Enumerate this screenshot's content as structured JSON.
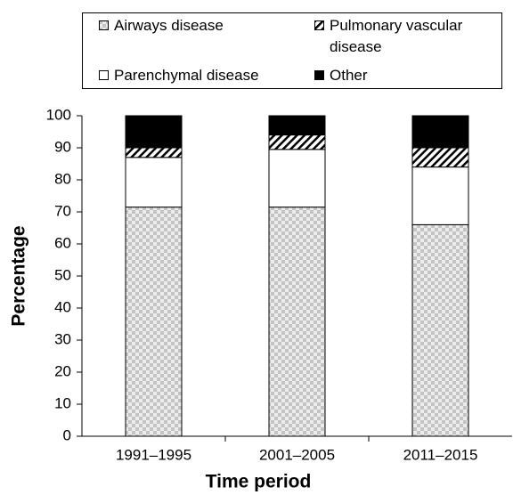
{
  "chart_data": {
    "type": "stacked_bar",
    "categories": [
      "1991–1995",
      "2001–2005",
      "2011–2015"
    ],
    "series": [
      {
        "name": "Airways disease",
        "color": "#c4c4c4",
        "pattern": "checker",
        "values": [
          71.5,
          71.5,
          66
        ]
      },
      {
        "name": "Parenchymal disease",
        "color": "#ffffff",
        "pattern": "solid",
        "values": [
          15.5,
          18,
          18
        ]
      },
      {
        "name": "Pulmonary vascular disease",
        "color": "#000000",
        "pattern": "hatch",
        "values": [
          3,
          4.5,
          6
        ]
      },
      {
        "name": "Other",
        "color": "#000000",
        "pattern": "solid",
        "values": [
          10,
          6,
          10
        ]
      }
    ],
    "xlabel": "Time period",
    "ylabel": "Percentage",
    "ylim": [
      0,
      100
    ],
    "yticks": [
      0,
      10,
      20,
      30,
      40,
      50,
      60,
      70,
      80,
      90,
      100
    ]
  }
}
